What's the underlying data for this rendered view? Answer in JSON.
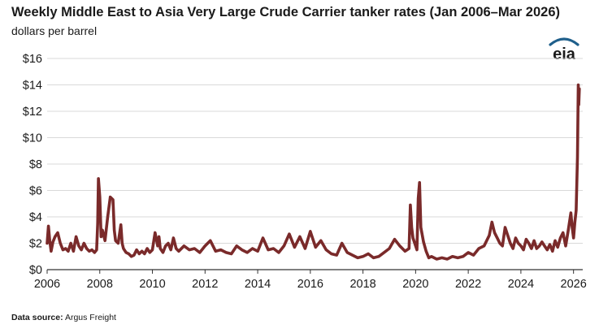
{
  "header": {
    "title": "Weekly Middle East to Asia Very Large Crude Carrier tanker rates (Jan 2006–Mar 2026)",
    "subtitle": "dollars per barrel"
  },
  "logo": {
    "text": "eia",
    "icon": "eia-logo"
  },
  "footer": {
    "source_label": "Data source:",
    "source_value": "Argus Freight"
  },
  "colors": {
    "series": "#7a2a2a",
    "grid": "#d9d9d9",
    "axis": "#333333"
  },
  "chart_data": {
    "type": "line",
    "title": "Weekly Middle East to Asia Very Large Crude Carrier tanker rates (Jan 2006–Mar 2026)",
    "ylabel": "dollars per barrel",
    "xlabel": "",
    "xlim": [
      2006,
      2026.35
    ],
    "ylim": [
      0,
      16
    ],
    "xticks": [
      2006,
      2008,
      2010,
      2012,
      2014,
      2016,
      2018,
      2020,
      2022,
      2024,
      2026
    ],
    "yticks": [
      0,
      2,
      4,
      6,
      8,
      10,
      12,
      14,
      16
    ],
    "ytick_format": "$",
    "grid": "horizontal",
    "series": [
      {
        "x": [
          2006.0,
          2006.05,
          2006.1,
          2006.15,
          2006.22,
          2006.3,
          2006.4,
          2006.5,
          2006.6,
          2006.7,
          2006.8,
          2006.9,
          2007.0,
          2007.1,
          2007.2,
          2007.3,
          2007.4,
          2007.5,
          2007.6,
          2007.7,
          2007.8,
          2007.88,
          2007.92,
          2007.95,
          2008.0,
          2008.05,
          2008.1,
          2008.2,
          2008.3,
          2008.4,
          2008.5,
          2008.55,
          2008.6,
          2008.7,
          2008.8,
          2008.85,
          2008.9,
          2009.0,
          2009.1,
          2009.2,
          2009.3,
          2009.4,
          2009.5,
          2009.6,
          2009.7,
          2009.8,
          2009.9,
          2010.0,
          2010.1,
          2010.2,
          2010.25,
          2010.3,
          2010.4,
          2010.5,
          2010.6,
          2010.7,
          2010.8,
          2010.9,
          2011.0,
          2011.2,
          2011.4,
          2011.6,
          2011.8,
          2012.0,
          2012.2,
          2012.4,
          2012.6,
          2012.8,
          2013.0,
          2013.2,
          2013.4,
          2013.6,
          2013.8,
          2014.0,
          2014.2,
          2014.4,
          2014.6,
          2014.8,
          2015.0,
          2015.2,
          2015.4,
          2015.6,
          2015.8,
          2016.0,
          2016.2,
          2016.4,
          2016.6,
          2016.8,
          2017.0,
          2017.2,
          2017.4,
          2017.6,
          2017.8,
          2018.0,
          2018.2,
          2018.4,
          2018.6,
          2018.8,
          2019.0,
          2019.2,
          2019.4,
          2019.6,
          2019.75,
          2019.8,
          2019.85,
          2019.9,
          2020.0,
          2020.05,
          2020.1,
          2020.15,
          2020.2,
          2020.3,
          2020.4,
          2020.5,
          2020.6,
          2020.8,
          2021.0,
          2021.2,
          2021.4,
          2021.6,
          2021.8,
          2022.0,
          2022.2,
          2022.4,
          2022.6,
          2022.8,
          2022.9,
          2023.0,
          2023.1,
          2023.2,
          2023.3,
          2023.4,
          2023.5,
          2023.6,
          2023.7,
          2023.8,
          2023.9,
          2024.0,
          2024.1,
          2024.2,
          2024.3,
          2024.4,
          2024.5,
          2024.6,
          2024.7,
          2024.8,
          2024.9,
          2025.0,
          2025.1,
          2025.2,
          2025.3,
          2025.4,
          2025.5,
          2025.6,
          2025.7,
          2025.8,
          2025.9,
          2025.95,
          2026.0,
          2026.05,
          2026.1,
          2026.15,
          2026.18,
          2026.2,
          2026.22
        ],
        "values": [
          2.0,
          3.3,
          2.2,
          1.4,
          2.1,
          2.5,
          2.8,
          2.0,
          1.5,
          1.6,
          1.4,
          2.0,
          1.4,
          2.5,
          1.8,
          1.5,
          2.0,
          1.6,
          1.4,
          1.5,
          1.3,
          1.5,
          3.5,
          6.9,
          5.5,
          2.5,
          3.0,
          2.2,
          4.0,
          5.5,
          5.3,
          3.0,
          2.2,
          2.0,
          3.4,
          2.0,
          1.6,
          1.3,
          1.2,
          1.0,
          1.1,
          1.5,
          1.2,
          1.4,
          1.2,
          1.6,
          1.3,
          1.5,
          2.8,
          1.8,
          2.5,
          1.6,
          1.3,
          1.8,
          2.0,
          1.5,
          2.4,
          1.6,
          1.4,
          1.8,
          1.5,
          1.6,
          1.3,
          1.8,
          2.2,
          1.4,
          1.5,
          1.3,
          1.2,
          1.8,
          1.5,
          1.3,
          1.6,
          1.4,
          2.4,
          1.5,
          1.6,
          1.3,
          1.8,
          2.7,
          1.7,
          2.5,
          1.6,
          2.9,
          1.7,
          2.2,
          1.5,
          1.2,
          1.1,
          2.0,
          1.3,
          1.1,
          0.9,
          1.0,
          1.2,
          0.9,
          1.0,
          1.3,
          1.6,
          2.3,
          1.8,
          1.4,
          1.6,
          4.9,
          3.2,
          2.4,
          1.8,
          1.5,
          5.4,
          6.6,
          3.2,
          2.1,
          1.4,
          0.9,
          1.0,
          0.8,
          0.9,
          0.8,
          1.0,
          0.9,
          1.0,
          1.3,
          1.1,
          1.6,
          1.8,
          2.6,
          3.6,
          2.8,
          2.4,
          2.0,
          1.8,
          3.2,
          2.6,
          2.0,
          1.6,
          2.4,
          2.0,
          1.8,
          1.5,
          2.3,
          2.0,
          1.6,
          2.2,
          1.6,
          1.8,
          2.1,
          1.8,
          1.5,
          1.9,
          1.4,
          2.2,
          1.7,
          2.4,
          2.8,
          1.8,
          3.0,
          4.3,
          3.2,
          2.4,
          3.6,
          4.5,
          8.5,
          14.0,
          12.5,
          13.7
        ]
      }
    ]
  }
}
